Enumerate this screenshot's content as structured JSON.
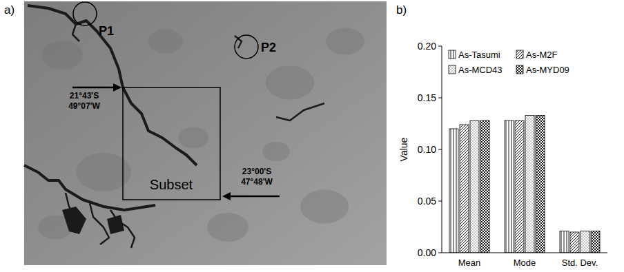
{
  "panel_labels": [
    "a)",
    "b)"
  ],
  "map": {
    "points": [
      {
        "label": "P1"
      },
      {
        "label": "P2"
      }
    ],
    "subset_label": "Subset",
    "corners": [
      {
        "lat": "21°43'S",
        "lon": "49°07'W"
      },
      {
        "lat": "23°00'S",
        "lon": "47°48'W"
      }
    ]
  },
  "chart_data": {
    "type": "bar",
    "y_label": "Value",
    "categories": [
      "Mean",
      "Mode",
      "Std. Dev."
    ],
    "series": [
      {
        "name": "As-Tasumi",
        "color": "#000000",
        "values": [
          0.12,
          0.128,
          0.021
        ]
      },
      {
        "name": "As-M2F",
        "color": "#000000",
        "values": [
          0.124,
          0.128,
          0.02
        ]
      },
      {
        "name": "As-MCD43",
        "color": "#000000",
        "values": [
          0.128,
          0.133,
          0.021
        ]
      },
      {
        "name": "As-MYD09",
        "color": "#000000",
        "values": [
          0.128,
          0.133,
          0.021
        ]
      }
    ],
    "ylim": [
      0,
      0.2
    ],
    "yticks": [
      {
        "value": 0,
        "label": "0.00"
      },
      {
        "value": 0.05,
        "label": "0.05"
      },
      {
        "value": 0.1,
        "label": "0.10"
      },
      {
        "value": 0.15,
        "label": "0.15"
      },
      {
        "value": 0.2,
        "label": "0.20"
      }
    ],
    "grid": false,
    "legend": "top"
  }
}
